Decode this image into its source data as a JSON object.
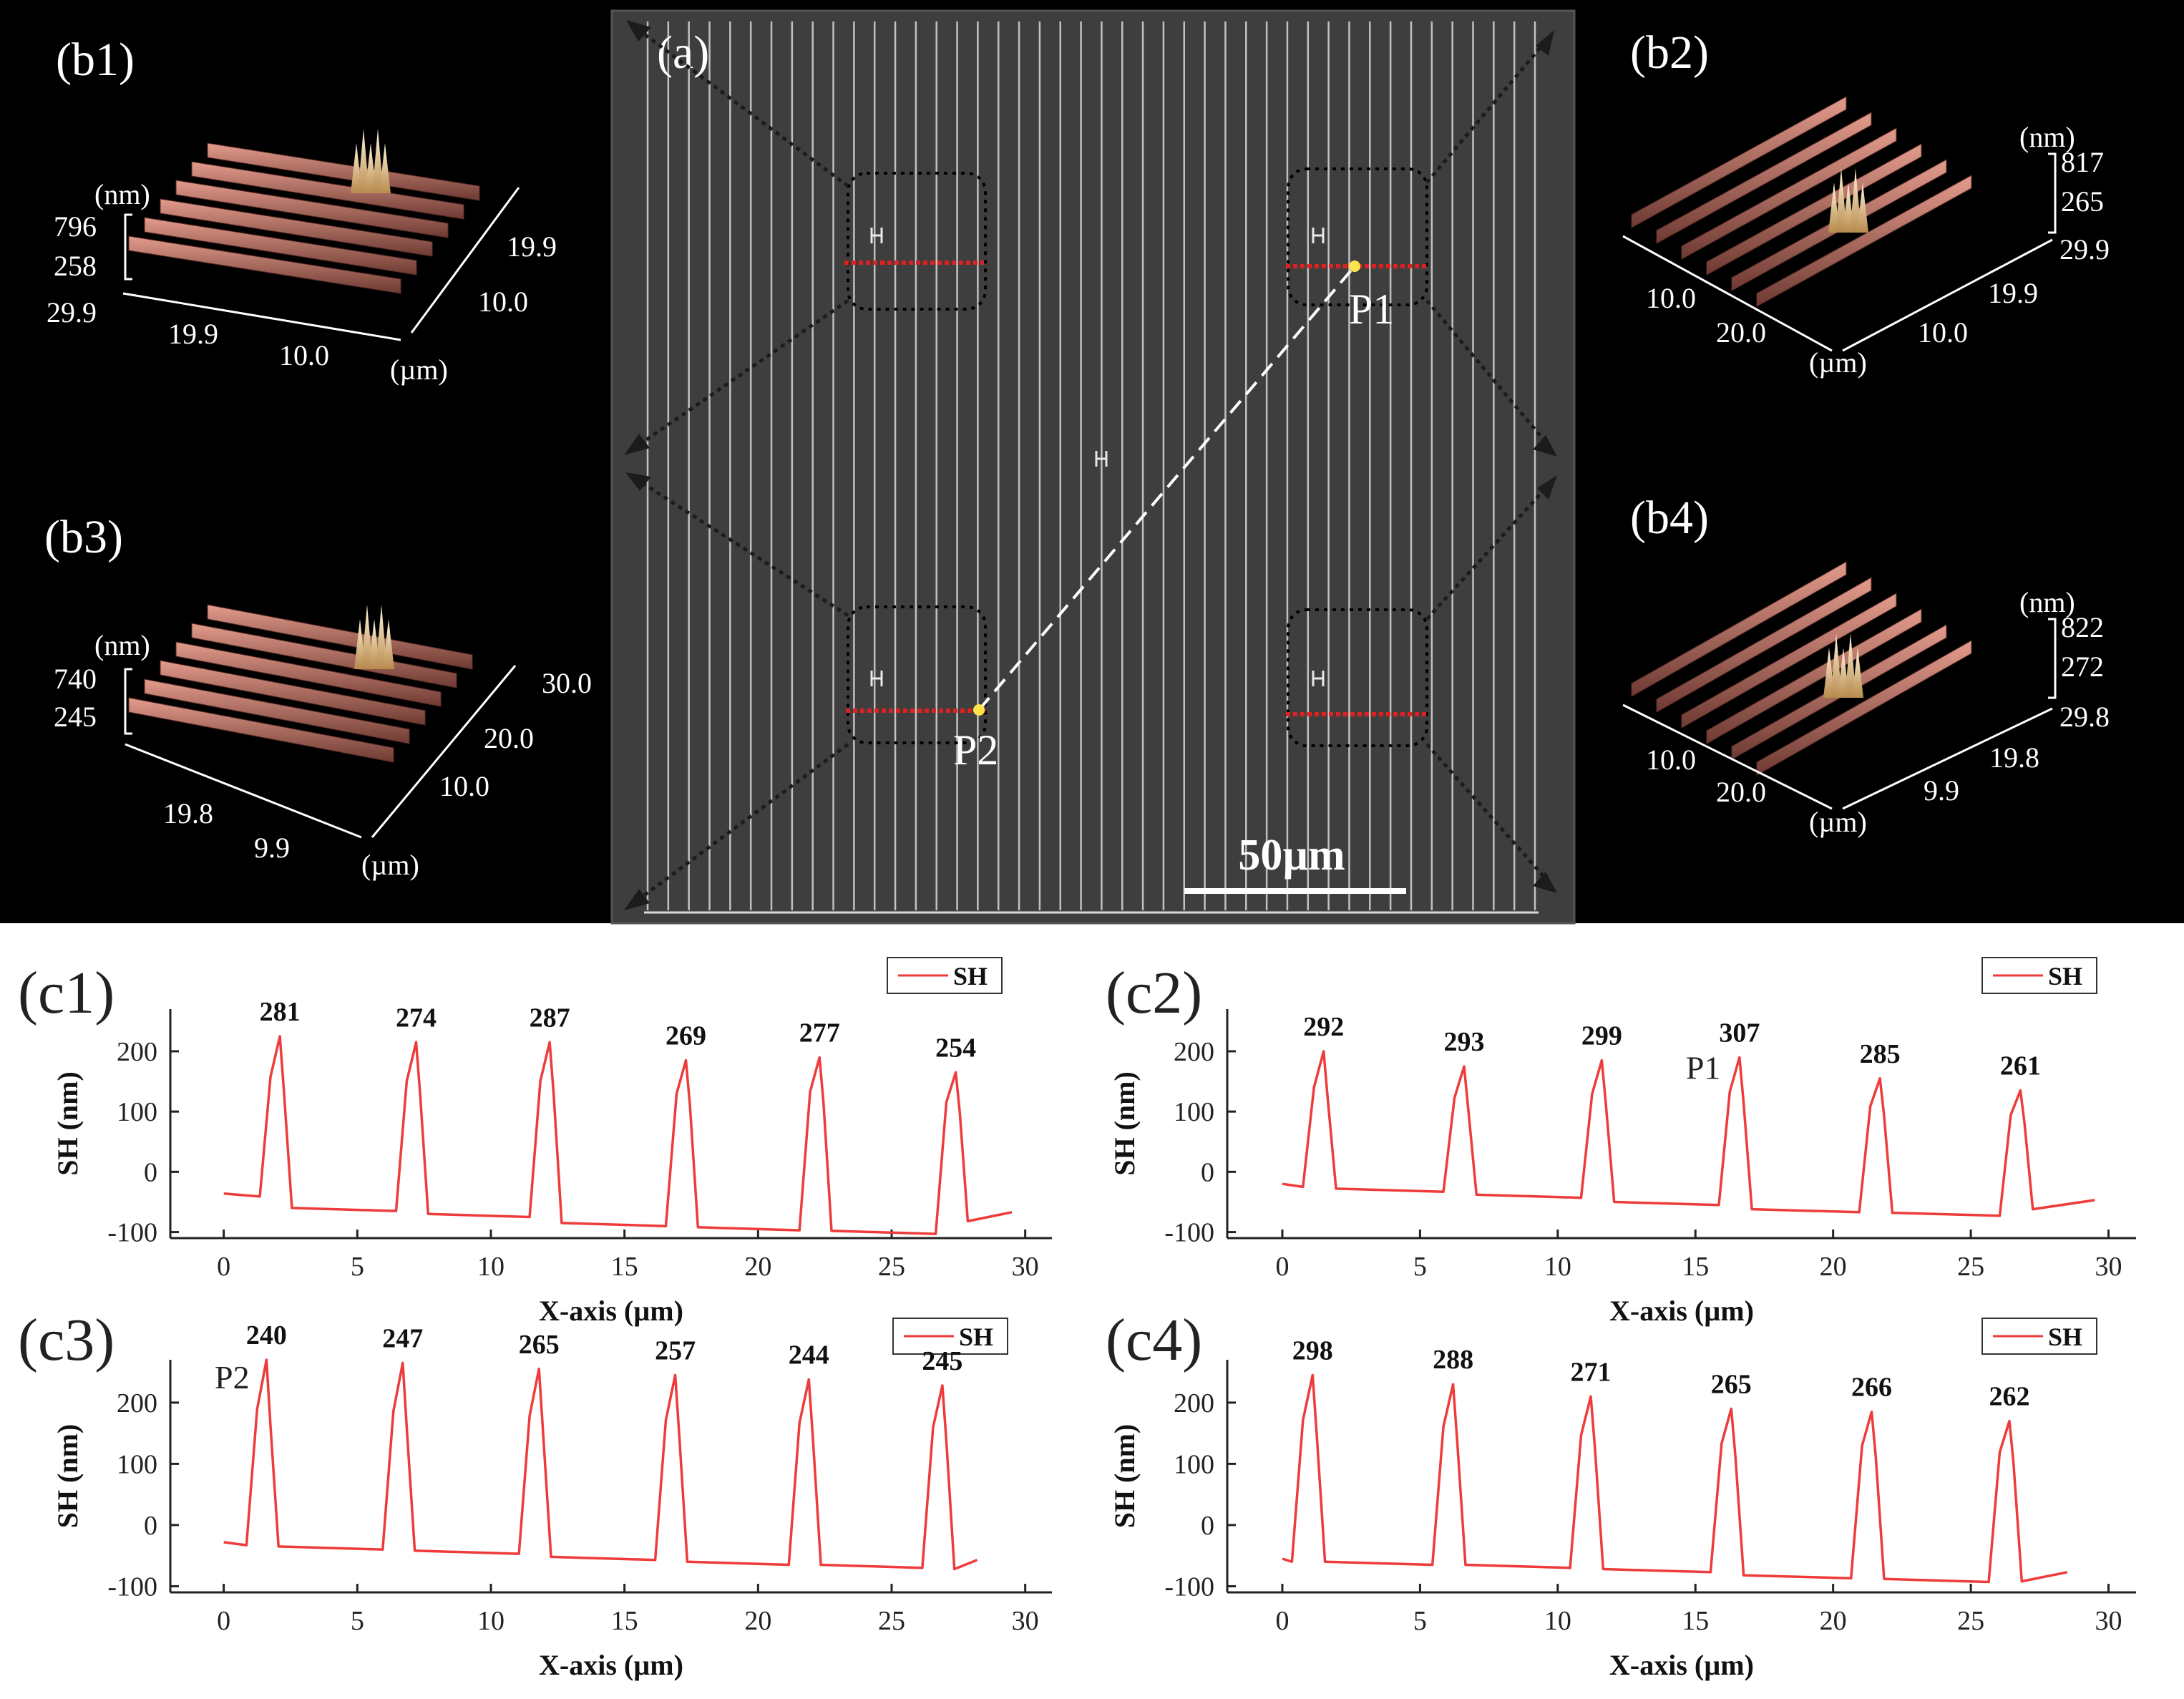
{
  "sem": {
    "label": "(a)",
    "scale_bar": "50µm",
    "point1": "P1",
    "point2": "P2"
  },
  "afm_panels": [
    {
      "label": "(b1)",
      "unit_nm": "(nm)",
      "z_max": "796",
      "z_mid": "258",
      "unit_um": "(µm)",
      "axis_a": [
        "29.9",
        "19.9",
        "10.0"
      ],
      "axis_b": [
        "19.9",
        "10.0"
      ]
    },
    {
      "label": "(b2)",
      "unit_nm": "(nm)",
      "z_max": "817",
      "z_mid": "265",
      "unit_um": "(µm)",
      "axis_a": [
        "10.0",
        "20.0"
      ],
      "axis_b": [
        "29.9",
        "19.9",
        "10.0"
      ]
    },
    {
      "label": "(b3)",
      "unit_nm": "(nm)",
      "z_max": "740",
      "z_mid": "245",
      "unit_um": "(µm)",
      "axis_a": [
        "19.8",
        "9.9"
      ],
      "axis_b": [
        "30.0",
        "20.0",
        "10.0"
      ]
    },
    {
      "label": "(b4)",
      "unit_nm": "(nm)",
      "z_max": "822",
      "z_mid": "272",
      "unit_um": "(µm)",
      "axis_a": [
        "10.0",
        "20.0"
      ],
      "axis_b": [
        "29.8",
        "19.8",
        "9.9"
      ]
    }
  ],
  "chart_data": [
    {
      "id": "c1",
      "type": "line",
      "panel_label": "(c1)",
      "legend": "SH",
      "xlabel": "X-axis (µm)",
      "ylabel": "SH (nm)",
      "xlim": [
        -2,
        31
      ],
      "ylim": [
        -110,
        270
      ],
      "xticks": [
        0,
        5,
        10,
        15,
        20,
        25,
        30
      ],
      "yticks": [
        -100,
        0,
        100,
        200
      ],
      "baseline_start": -36,
      "peak_x": [
        2.1,
        7.2,
        12.2,
        17.3,
        22.3,
        27.4
      ],
      "peak_y": [
        225,
        215,
        215,
        185,
        190,
        165
      ],
      "trough_y": [
        -60,
        -70,
        -85,
        -92,
        -98,
        -82
      ],
      "end_x": 29.5,
      "peak_labels": [
        "281",
        "274",
        "287",
        "269",
        "277",
        "254"
      ],
      "annotation": ""
    },
    {
      "id": "c2",
      "type": "line",
      "panel_label": "(c2)",
      "legend": "SH",
      "xlabel": "X-axis (µm)",
      "ylabel": "SH (nm)",
      "xlim": [
        -2,
        31
      ],
      "ylim": [
        -110,
        270
      ],
      "xticks": [
        0,
        5,
        10,
        15,
        20,
        25,
        30
      ],
      "yticks": [
        -100,
        0,
        100,
        200
      ],
      "baseline_start": -20,
      "peak_x": [
        1.5,
        6.6,
        11.6,
        16.6,
        21.7,
        26.8
      ],
      "peak_y": [
        200,
        175,
        185,
        190,
        155,
        135
      ],
      "trough_y": [
        -28,
        -38,
        -50,
        -62,
        -68,
        -62
      ],
      "end_x": 29.5,
      "peak_labels": [
        "292",
        "293",
        "299",
        "307",
        "285",
        "261"
      ],
      "annotation": "P1"
    },
    {
      "id": "c3",
      "type": "line",
      "panel_label": "(c3)",
      "legend": "SH",
      "xlabel": "X-axis (µm)",
      "ylabel": "SH (nm)",
      "xlim": [
        -2,
        31
      ],
      "ylim": [
        -110,
        270
      ],
      "xticks": [
        0,
        5,
        10,
        15,
        20,
        25,
        30
      ],
      "yticks": [
        -100,
        0,
        100,
        200
      ],
      "baseline_start": -28,
      "peak_x": [
        1.6,
        6.7,
        11.8,
        16.9,
        21.9,
        26.9
      ],
      "peak_y": [
        270,
        265,
        255,
        245,
        238,
        228
      ],
      "trough_y": [
        -35,
        -42,
        -52,
        -60,
        -65,
        -72
      ],
      "end_x": 28.2,
      "peak_labels": [
        "240",
        "247",
        "265",
        "257",
        "244",
        "245"
      ],
      "annotation": "P2"
    },
    {
      "id": "c4",
      "type": "line",
      "panel_label": "(c4)",
      "legend": "SH",
      "xlabel": "X-axis (µm)",
      "ylabel": "SH (nm)",
      "xlim": [
        -2,
        31
      ],
      "ylim": [
        -110,
        270
      ],
      "xticks": [
        0,
        5,
        10,
        15,
        20,
        25,
        30
      ],
      "yticks": [
        -100,
        0,
        100,
        200
      ],
      "baseline_start": -55,
      "peak_x": [
        1.1,
        6.2,
        11.2,
        16.3,
        21.4,
        26.4
      ],
      "peak_y": [
        245,
        230,
        210,
        190,
        185,
        170
      ],
      "trough_y": [
        -60,
        -65,
        -72,
        -82,
        -88,
        -92
      ],
      "end_x": 28.5,
      "peak_labels": [
        "298",
        "288",
        "271",
        "265",
        "266",
        "262"
      ],
      "annotation": ""
    }
  ],
  "colors": {
    "series": "#ee3b3b",
    "sem_bg": "#3e3e3e",
    "sem_lines": "#d9d9d9",
    "afm_ridge": "#b36b5e",
    "afm_peak": "#f3e6bd",
    "marker": "#ffe34d"
  }
}
